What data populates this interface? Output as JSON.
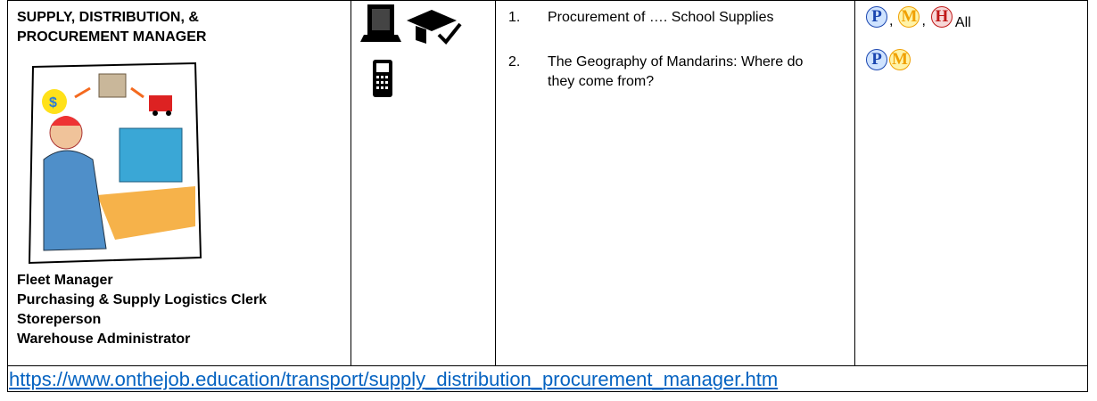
{
  "header": {
    "title": [
      "SUPPLY, DISTRIBUTION, &",
      "PROCUREMENT MANAGER"
    ]
  },
  "jobs": [
    "Fleet Manager",
    "Purchasing & Supply Logistics Clerk",
    "Storeperson",
    "Warehouse Administrator"
  ],
  "activities": [
    {
      "number": "1.",
      "text": "Procurement of …. School Supplies",
      "levels": [
        "P",
        "M",
        "H"
      ],
      "separator": ",",
      "note": "All"
    },
    {
      "number": "2.",
      "text": "The Geography of Mandarins: Where do they come from?",
      "levels": [
        "P",
        "M"
      ]
    }
  ],
  "link": "https://www.onthejob.education/transport/supply_distribution_procurement_manager.htm"
}
